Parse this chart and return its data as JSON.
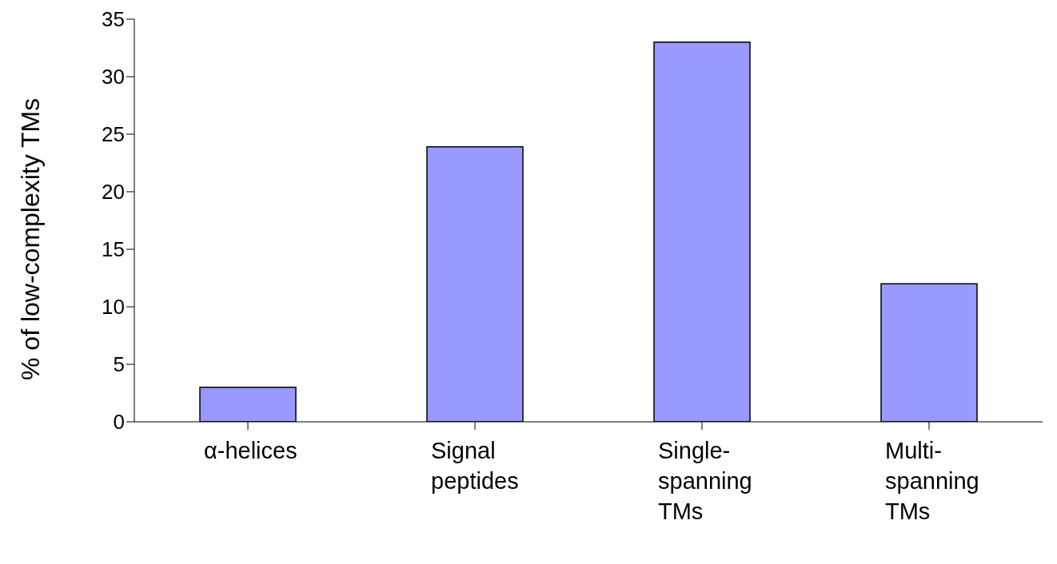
{
  "chart_data": {
    "type": "bar",
    "ylabel": "% of low-complexity TMs",
    "categories": [
      "α-helices",
      "Signal peptides",
      "Single-spanning TMs",
      "Multi-spanning TMs"
    ],
    "values": [
      3,
      23.9,
      33,
      12
    ],
    "color": "#9999ff",
    "ylim": [
      0,
      35
    ],
    "yticks": [
      0,
      5,
      10,
      15,
      20,
      25,
      30,
      35
    ],
    "grid": false,
    "legend": false
  }
}
